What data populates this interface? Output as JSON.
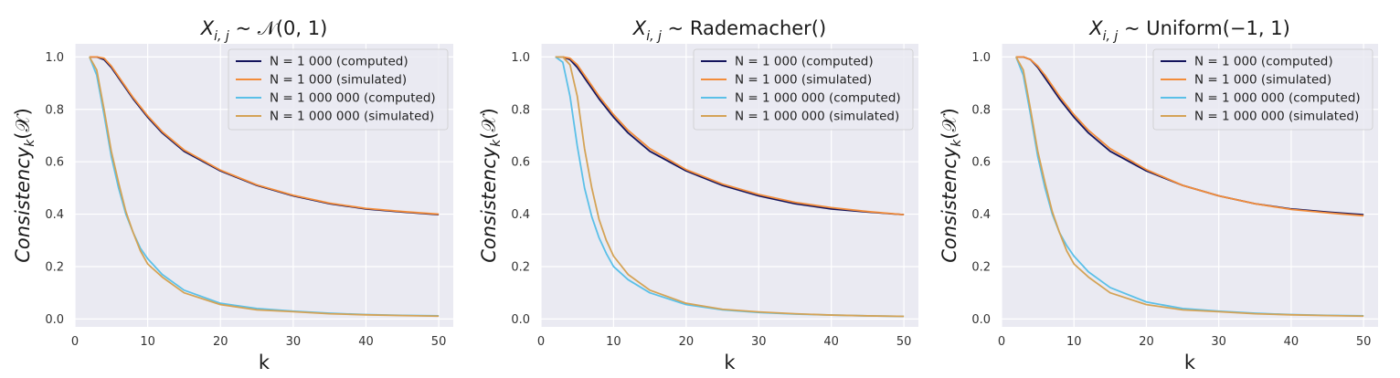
{
  "figure": {
    "background": "#ffffff",
    "panel_background": "#eaeaf2",
    "grid_color": "#ffffff"
  },
  "chart_data": [
    {
      "type": "line",
      "title_prefix": "X",
      "title_sub": "i, j",
      "title_rest": " ~ 𝒩(0, 1)",
      "xlabel": "k",
      "ylabel_main": "Consistency",
      "ylabel_sub": "k",
      "ylabel_arg": "(𝒳)",
      "xlim": [
        0,
        52
      ],
      "ylim": [
        -0.03,
        1.05
      ],
      "xticks": [
        0,
        10,
        20,
        30,
        40,
        50
      ],
      "yticks": [
        0.0,
        0.2,
        0.4,
        0.6,
        0.8,
        1.0
      ],
      "xtick_labels": [
        "0",
        "10",
        "20",
        "30",
        "40",
        "50"
      ],
      "ytick_labels": [
        "0.0",
        "0.2",
        "0.4",
        "0.6",
        "0.8",
        "1.0"
      ],
      "grid": true,
      "legend_position": "top-right",
      "series": [
        {
          "name": "N = 1 000 (computed)",
          "color": "#14145c",
          "x": [
            2,
            3,
            4,
            5,
            6,
            8,
            10,
            12,
            15,
            20,
            25,
            30,
            35,
            40,
            45,
            50
          ],
          "y": [
            1.0,
            1.0,
            0.99,
            0.96,
            0.92,
            0.84,
            0.77,
            0.71,
            0.64,
            0.565,
            0.51,
            0.47,
            0.44,
            0.42,
            0.408,
            0.398
          ]
        },
        {
          "name": "N = 1 000 (simulated)",
          "color": "#f28c3a",
          "x": [
            2,
            3,
            4,
            5,
            6,
            8,
            10,
            12,
            15,
            20,
            25,
            30,
            35,
            40,
            45,
            50
          ],
          "y": [
            1.0,
            1.0,
            0.995,
            0.965,
            0.925,
            0.845,
            0.775,
            0.715,
            0.645,
            0.568,
            0.512,
            0.472,
            0.442,
            0.422,
            0.41,
            0.4
          ]
        },
        {
          "name": "N = 1 000 000 (computed)",
          "color": "#5bc0e8",
          "x": [
            2,
            3,
            4,
            5,
            6,
            7,
            8,
            9,
            10,
            12,
            15,
            20,
            25,
            30,
            35,
            40,
            45,
            50
          ],
          "y": [
            1.0,
            0.93,
            0.78,
            0.62,
            0.5,
            0.4,
            0.33,
            0.27,
            0.23,
            0.17,
            0.11,
            0.06,
            0.04,
            0.03,
            0.022,
            0.017,
            0.014,
            0.012
          ]
        },
        {
          "name": "N = 1 000 000 (simulated)",
          "color": "#d4a356",
          "x": [
            2,
            3,
            4,
            5,
            6,
            7,
            8,
            9,
            10,
            12,
            15,
            20,
            25,
            30,
            35,
            40,
            45,
            50
          ],
          "y": [
            1.0,
            0.95,
            0.8,
            0.64,
            0.52,
            0.41,
            0.33,
            0.26,
            0.21,
            0.16,
            0.1,
            0.055,
            0.035,
            0.028,
            0.02,
            0.016,
            0.013,
            0.011
          ]
        }
      ]
    },
    {
      "type": "line",
      "title_prefix": "X",
      "title_sub": "i, j",
      "title_rest": " ~ Rademacher()",
      "xlabel": "k",
      "ylabel_main": "Consistency",
      "ylabel_sub": "k",
      "ylabel_arg": "(𝒳)",
      "xlim": [
        0,
        52
      ],
      "ylim": [
        -0.03,
        1.05
      ],
      "xticks": [
        0,
        10,
        20,
        30,
        40,
        50
      ],
      "yticks": [
        0.0,
        0.2,
        0.4,
        0.6,
        0.8,
        1.0
      ],
      "xtick_labels": [
        "0",
        "10",
        "20",
        "30",
        "40",
        "50"
      ],
      "ytick_labels": [
        "0.0",
        "0.2",
        "0.4",
        "0.6",
        "0.8",
        "1.0"
      ],
      "grid": true,
      "legend_position": "top-right",
      "series": [
        {
          "name": "N = 1 000 (computed)",
          "color": "#14145c",
          "x": [
            2,
            3,
            4,
            5,
            6,
            8,
            10,
            12,
            15,
            20,
            25,
            30,
            35,
            40,
            45,
            50
          ],
          "y": [
            1.0,
            1.0,
            0.99,
            0.96,
            0.92,
            0.84,
            0.77,
            0.71,
            0.64,
            0.565,
            0.51,
            0.47,
            0.44,
            0.42,
            0.408,
            0.398
          ]
        },
        {
          "name": "N = 1 000 (simulated)",
          "color": "#f28c3a",
          "x": [
            2,
            3,
            4,
            5,
            6,
            8,
            10,
            12,
            15,
            20,
            25,
            30,
            35,
            40,
            45,
            50
          ],
          "y": [
            1.0,
            1.0,
            0.995,
            0.97,
            0.93,
            0.85,
            0.78,
            0.72,
            0.65,
            0.57,
            0.515,
            0.475,
            0.445,
            0.425,
            0.41,
            0.398
          ]
        },
        {
          "name": "N = 1 000 000 (computed)",
          "color": "#5bc0e8",
          "x": [
            2,
            3,
            4,
            5,
            6,
            7,
            8,
            9,
            10,
            12,
            15,
            20,
            25,
            30,
            35,
            40,
            45,
            50
          ],
          "y": [
            1.0,
            0.98,
            0.85,
            0.66,
            0.5,
            0.39,
            0.31,
            0.25,
            0.2,
            0.15,
            0.1,
            0.055,
            0.035,
            0.025,
            0.019,
            0.015,
            0.012,
            0.01
          ]
        },
        {
          "name": "N = 1 000 000 (simulated)",
          "color": "#d4a356",
          "x": [
            2,
            3,
            4,
            5,
            6,
            7,
            8,
            9,
            10,
            12,
            15,
            20,
            25,
            30,
            35,
            40,
            45,
            50
          ],
          "y": [
            1.0,
            1.0,
            0.97,
            0.85,
            0.65,
            0.5,
            0.38,
            0.3,
            0.24,
            0.17,
            0.11,
            0.06,
            0.037,
            0.027,
            0.02,
            0.015,
            0.012,
            0.01
          ]
        }
      ]
    },
    {
      "type": "line",
      "title_prefix": "X",
      "title_sub": "i, j",
      "title_rest": " ~ Uniform(−1, 1)",
      "xlabel": "k",
      "ylabel_main": "Consistency",
      "ylabel_sub": "k",
      "ylabel_arg": "(𝒳)",
      "xlim": [
        0,
        52
      ],
      "ylim": [
        -0.03,
        1.05
      ],
      "xticks": [
        0,
        10,
        20,
        30,
        40,
        50
      ],
      "yticks": [
        0.0,
        0.2,
        0.4,
        0.6,
        0.8,
        1.0
      ],
      "xtick_labels": [
        "0",
        "10",
        "20",
        "30",
        "40",
        "50"
      ],
      "ytick_labels": [
        "0.0",
        "0.2",
        "0.4",
        "0.6",
        "0.8",
        "1.0"
      ],
      "grid": true,
      "legend_position": "top-right",
      "series": [
        {
          "name": "N = 1 000 (computed)",
          "color": "#14145c",
          "x": [
            2,
            3,
            4,
            5,
            6,
            8,
            10,
            12,
            15,
            20,
            25,
            30,
            35,
            40,
            45,
            50
          ],
          "y": [
            1.0,
            1.0,
            0.99,
            0.96,
            0.92,
            0.84,
            0.77,
            0.71,
            0.64,
            0.565,
            0.51,
            0.47,
            0.44,
            0.42,
            0.408,
            0.398
          ]
        },
        {
          "name": "N = 1 000 (simulated)",
          "color": "#f28c3a",
          "x": [
            2,
            3,
            4,
            5,
            6,
            8,
            10,
            12,
            15,
            20,
            25,
            30,
            35,
            40,
            45,
            50
          ],
          "y": [
            1.0,
            1.0,
            0.99,
            0.965,
            0.93,
            0.85,
            0.78,
            0.72,
            0.65,
            0.57,
            0.51,
            0.47,
            0.44,
            0.418,
            0.405,
            0.394
          ]
        },
        {
          "name": "N = 1 000 000 (computed)",
          "color": "#5bc0e8",
          "x": [
            2,
            3,
            4,
            5,
            6,
            7,
            8,
            9,
            10,
            12,
            15,
            20,
            25,
            30,
            35,
            40,
            45,
            50
          ],
          "y": [
            1.0,
            0.93,
            0.78,
            0.62,
            0.5,
            0.4,
            0.33,
            0.28,
            0.24,
            0.18,
            0.12,
            0.065,
            0.04,
            0.03,
            0.022,
            0.017,
            0.014,
            0.012
          ]
        },
        {
          "name": "N = 1 000 000 (simulated)",
          "color": "#d4a356",
          "x": [
            2,
            3,
            4,
            5,
            6,
            7,
            8,
            9,
            10,
            12,
            15,
            20,
            25,
            30,
            35,
            40,
            45,
            50
          ],
          "y": [
            1.0,
            0.95,
            0.8,
            0.64,
            0.52,
            0.41,
            0.33,
            0.26,
            0.21,
            0.16,
            0.1,
            0.055,
            0.035,
            0.028,
            0.02,
            0.016,
            0.013,
            0.011
          ]
        }
      ]
    }
  ]
}
